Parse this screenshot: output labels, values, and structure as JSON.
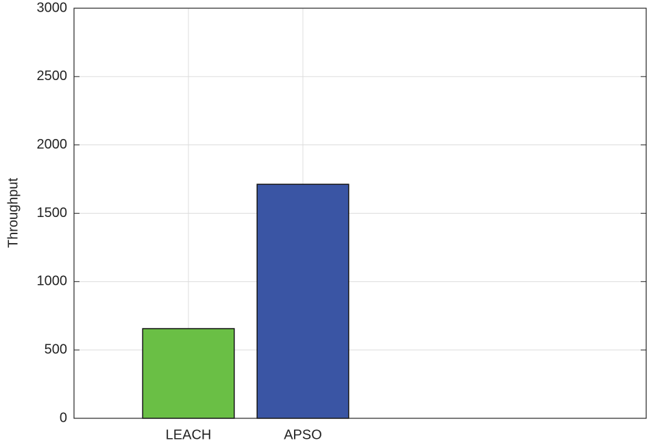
{
  "chart_data": {
    "type": "bar",
    "y_label": "Throughput",
    "categories": [
      "LEACH",
      "APSO"
    ],
    "values": [
      656,
      1712
    ],
    "colors": [
      "#6abf45",
      "#3a55a4"
    ],
    "ylim": [
      0,
      3000
    ],
    "yticks": [
      0,
      500,
      1000,
      1500,
      2000,
      2500,
      3000
    ],
    "grid": true
  }
}
